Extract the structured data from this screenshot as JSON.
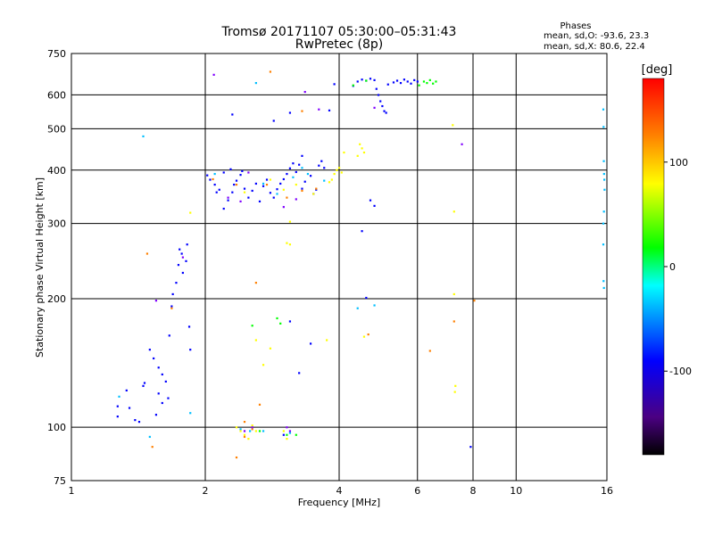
{
  "chart_data": {
    "type": "scatter",
    "title_line1": "Tromsø 20171107 05:30:00–05:31:43",
    "title_line2": "RwPretec (8p)",
    "info_title": "Phases",
    "info_line1": "mean, sd,O: -93.6, 23.3",
    "info_line2": "mean, sd,X:  80.6, 22.4",
    "xlabel": "Frequency [MHz]",
    "ylabel": "Stationary phase Virtual Height [km]",
    "x_scale": "log",
    "y_scale": "log",
    "xlim": [
      1,
      16
    ],
    "ylim": [
      75,
      750
    ],
    "x_ticks": [
      1,
      2,
      4,
      6,
      8,
      10,
      16
    ],
    "x_tick_labels": [
      "1",
      "2",
      "4",
      "6",
      "8",
      "10",
      "16"
    ],
    "x_grid": [
      2,
      4,
      6,
      8,
      10
    ],
    "y_ticks": [
      75,
      100,
      200,
      300,
      400,
      500,
      600,
      750
    ],
    "y_tick_labels": [
      "75",
      "100",
      "200",
      "300",
      "400",
      "500",
      "600",
      "750"
    ],
    "y_grid": [
      100,
      200,
      300,
      400,
      500,
      600
    ],
    "grid": true,
    "colorbar": {
      "label": "[deg]",
      "range": [
        -180,
        180
      ],
      "ticks": [
        100,
        0,
        -100
      ],
      "tick_labels": [
        "100",
        "0",
        "-100"
      ],
      "stops": [
        "#000000",
        "#4b0082",
        "#0000ff",
        "#00ffff",
        "#00ff00",
        "#ffff00",
        "#ff8000",
        "#ff0000"
      ]
    },
    "series": [
      {
        "color": "#0000ff",
        "points": [
          [
            1.27,
            112
          ],
          [
            1.27,
            106
          ],
          [
            1.33,
            122
          ],
          [
            1.35,
            111
          ],
          [
            1.39,
            104
          ],
          [
            1.42,
            103
          ],
          [
            1.45,
            125
          ],
          [
            1.46,
            127
          ],
          [
            1.5,
            152
          ],
          [
            1.53,
            145
          ],
          [
            1.57,
            138
          ],
          [
            1.6,
            133
          ],
          [
            1.63,
            128
          ],
          [
            1.57,
            120
          ],
          [
            1.6,
            114
          ],
          [
            1.55,
            107
          ],
          [
            1.65,
            117
          ],
          [
            1.66,
            164
          ],
          [
            1.68,
            192
          ],
          [
            1.69,
            205
          ],
          [
            1.72,
            218
          ],
          [
            1.74,
            240
          ],
          [
            1.77,
            255
          ],
          [
            1.82,
            268
          ],
          [
            1.78,
            230
          ],
          [
            1.81,
            245
          ],
          [
            1.85,
            152
          ],
          [
            1.84,
            172
          ],
          [
            1.75,
            261
          ],
          [
            2.2,
            325
          ],
          [
            2.25,
            340
          ],
          [
            2.3,
            355
          ],
          [
            2.32,
            370
          ],
          [
            2.35,
            378
          ],
          [
            2.4,
            390
          ],
          [
            2.42,
            398
          ],
          [
            2.45,
            362
          ],
          [
            2.5,
            345
          ],
          [
            2.55,
            358
          ],
          [
            2.6,
            372
          ],
          [
            2.65,
            338
          ],
          [
            2.7,
            367
          ],
          [
            2.75,
            380
          ],
          [
            2.8,
            354
          ],
          [
            2.85,
            345
          ],
          [
            2.9,
            361
          ],
          [
            2.95,
            372
          ],
          [
            3.0,
            381
          ],
          [
            3.05,
            392
          ],
          [
            3.1,
            404
          ],
          [
            3.15,
            415
          ],
          [
            3.2,
            396
          ],
          [
            3.25,
            412
          ],
          [
            3.3,
            432
          ],
          [
            3.3,
            362
          ],
          [
            3.35,
            376
          ],
          [
            3.45,
            388
          ],
          [
            3.5,
            352
          ],
          [
            3.55,
            360
          ],
          [
            3.6,
            410
          ],
          [
            3.65,
            420
          ],
          [
            3.7,
            405
          ],
          [
            2.3,
            540
          ],
          [
            2.85,
            522
          ],
          [
            3.1,
            545
          ],
          [
            3.8,
            552
          ],
          [
            3.9,
            636
          ],
          [
            4.3,
            630
          ],
          [
            4.4,
            645
          ],
          [
            4.5,
            652
          ],
          [
            4.6,
            648
          ],
          [
            4.7,
            655
          ],
          [
            4.8,
            650
          ],
          [
            4.85,
            620
          ],
          [
            4.9,
            600
          ],
          [
            4.95,
            580
          ],
          [
            5.0,
            565
          ],
          [
            5.05,
            550
          ],
          [
            5.1,
            545
          ],
          [
            5.15,
            635
          ],
          [
            5.3,
            642
          ],
          [
            5.4,
            648
          ],
          [
            5.5,
            640
          ],
          [
            5.6,
            652
          ],
          [
            5.7,
            645
          ],
          [
            5.8,
            638
          ],
          [
            5.9,
            650
          ],
          [
            6.0,
            645
          ],
          [
            4.5,
            288
          ],
          [
            4.6,
            201
          ],
          [
            4.7,
            340
          ],
          [
            4.8,
            330
          ],
          [
            3.1,
            177
          ],
          [
            3.45,
            157
          ],
          [
            3.25,
            134
          ],
          [
            3.0,
            96
          ],
          [
            7.9,
            90
          ],
          [
            2.02,
            389
          ],
          [
            2.1,
            370
          ],
          [
            2.15,
            360
          ],
          [
            2.05,
            380
          ],
          [
            2.12,
            355
          ],
          [
            2.2,
            395
          ],
          [
            2.28,
            402
          ]
        ]
      },
      {
        "color": "#00bfff",
        "points": [
          [
            1.45,
            480
          ],
          [
            1.28,
            118
          ],
          [
            1.85,
            108
          ],
          [
            2.1,
            392
          ],
          [
            2.6,
            640
          ],
          [
            2.7,
            372
          ],
          [
            2.9,
            352
          ],
          [
            3.15,
            385
          ],
          [
            3.3,
            405
          ],
          [
            3.4,
            392
          ],
          [
            3.7,
            378
          ],
          [
            4.4,
            190
          ],
          [
            4.8,
            193
          ],
          [
            2.4,
            99
          ],
          [
            2.52,
            98
          ],
          [
            2.7,
            98
          ],
          [
            3.1,
            97
          ],
          [
            15.7,
            555
          ],
          [
            15.72,
            505
          ],
          [
            15.74,
            420
          ],
          [
            15.76,
            392
          ],
          [
            15.78,
            380
          ],
          [
            15.8,
            360
          ],
          [
            15.75,
            320
          ],
          [
            15.7,
            300
          ],
          [
            15.72,
            220
          ],
          [
            15.75,
            212
          ],
          [
            15.7,
            268
          ],
          [
            1.5,
            95
          ]
        ]
      },
      {
        "color": "#00ff00",
        "points": [
          [
            4.3,
            632
          ],
          [
            4.6,
            648
          ],
          [
            6.05,
            632
          ],
          [
            6.2,
            645
          ],
          [
            6.3,
            640
          ],
          [
            6.4,
            650
          ],
          [
            6.5,
            638
          ],
          [
            6.6,
            645
          ],
          [
            2.55,
            173
          ],
          [
            2.9,
            180
          ],
          [
            2.95,
            175
          ],
          [
            2.65,
            98
          ],
          [
            3.2,
            96
          ],
          [
            3.05,
            96
          ]
        ]
      },
      {
        "color": "#ffff00",
        "points": [
          [
            1.85,
            318
          ],
          [
            2.45,
            355
          ],
          [
            2.8,
            380
          ],
          [
            3.0,
            360
          ],
          [
            3.2,
            370
          ],
          [
            3.5,
            352
          ],
          [
            3.8,
            375
          ],
          [
            3.85,
            380
          ],
          [
            3.9,
            392
          ],
          [
            3.95,
            400
          ],
          [
            4.0,
            405
          ],
          [
            4.05,
            395
          ],
          [
            4.45,
            460
          ],
          [
            4.5,
            450
          ],
          [
            4.55,
            440
          ],
          [
            4.4,
            432
          ],
          [
            4.1,
            440
          ],
          [
            7.2,
            510
          ],
          [
            7.25,
            320
          ],
          [
            7.25,
            205
          ],
          [
            7.3,
            125
          ],
          [
            7.28,
            121
          ],
          [
            3.05,
            270
          ],
          [
            3.1,
            268
          ],
          [
            3.1,
            303
          ],
          [
            2.6,
            160
          ],
          [
            2.8,
            153
          ],
          [
            2.7,
            140
          ],
          [
            3.75,
            160
          ],
          [
            4.55,
            163
          ],
          [
            2.35,
            100
          ],
          [
            2.45,
            96
          ],
          [
            2.5,
            94
          ],
          [
            2.6,
            98
          ],
          [
            3.0,
            98
          ],
          [
            3.05,
            94
          ],
          [
            2.4,
            98
          ],
          [
            2.55,
            101
          ]
        ]
      },
      {
        "color": "#ff8000",
        "points": [
          [
            1.48,
            255
          ],
          [
            1.52,
            90
          ],
          [
            2.08,
            381
          ],
          [
            2.35,
            370
          ],
          [
            2.75,
            370
          ],
          [
            3.05,
            345
          ],
          [
            3.3,
            358
          ],
          [
            3.55,
            362
          ],
          [
            2.6,
            218
          ],
          [
            2.65,
            113
          ],
          [
            2.35,
            85
          ],
          [
            1.68,
            190
          ],
          [
            4.65,
            165
          ],
          [
            6.4,
            151
          ],
          [
            7.25,
            177
          ],
          [
            8.05,
            198
          ],
          [
            2.8,
            680
          ],
          [
            3.3,
            550
          ],
          [
            2.45,
            95
          ],
          [
            2.45,
            103
          ],
          [
            2.55,
            99
          ]
        ]
      },
      {
        "color": "#8000ff",
        "points": [
          [
            2.09,
            669
          ],
          [
            2.4,
            338
          ],
          [
            2.25,
            345
          ],
          [
            2.5,
            395
          ],
          [
            3.0,
            328
          ],
          [
            3.2,
            342
          ],
          [
            3.6,
            555
          ],
          [
            4.8,
            560
          ],
          [
            3.35,
            610
          ],
          [
            7.55,
            460
          ],
          [
            2.45,
            98
          ],
          [
            2.55,
            100
          ],
          [
            3.05,
            100
          ],
          [
            3.1,
            98
          ],
          [
            1.78,
            250
          ],
          [
            1.55,
            198
          ]
        ]
      }
    ]
  }
}
